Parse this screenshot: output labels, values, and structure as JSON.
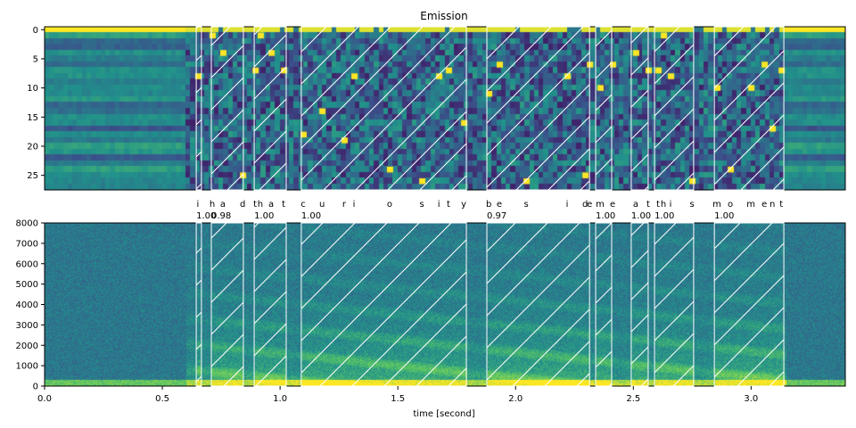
{
  "chart_data": [
    {
      "type": "heatmap",
      "title": "Emission",
      "ylim": [
        27.5,
        -0.5
      ],
      "yticks": [
        0,
        5,
        10,
        15,
        20,
        25
      ],
      "n_labels": 28,
      "colormap": "viridis"
    },
    {
      "type": "heatmap",
      "title": "",
      "xlabel": "time [second]",
      "ylabel": "",
      "xlim": [
        0,
        3.4
      ],
      "ylim": [
        0,
        8000
      ],
      "xticks": [
        "0.0",
        "0.5",
        "1.0",
        "1.5",
        "2.0",
        "2.5",
        "3.0"
      ],
      "yticks": [
        "0",
        "1000",
        "2000",
        "3000",
        "4000",
        "5000",
        "6000",
        "7000",
        "8000"
      ],
      "colormap": "viridis",
      "words": [
        {
          "start": 0.644,
          "end": 0.666,
          "score": "1.00"
        },
        {
          "start": 0.708,
          "end": 0.844,
          "score": "0.98"
        },
        {
          "start": 0.89,
          "end": 1.026,
          "score": "1.00"
        },
        {
          "start": 1.09,
          "end": 1.791,
          "score": "1.00"
        },
        {
          "start": 1.878,
          "end": 2.314,
          "score": "0.97"
        },
        {
          "start": 2.34,
          "end": 2.408,
          "score": "1.00"
        },
        {
          "start": 2.491,
          "end": 2.563,
          "score": "1.00"
        },
        {
          "start": 2.59,
          "end": 2.756,
          "score": "1.00"
        },
        {
          "start": 2.844,
          "end": 3.139,
          "score": "1.00"
        }
      ],
      "chars": [
        {
          "c": "i",
          "t": 0.651
        },
        {
          "c": "h",
          "t": 0.712
        },
        {
          "c": "a",
          "t": 0.757
        },
        {
          "c": "d",
          "t": 0.841
        },
        {
          "c": "t",
          "t": 0.894
        },
        {
          "c": "h",
          "t": 0.916
        },
        {
          "c": "a",
          "t": 0.962
        },
        {
          "c": "t",
          "t": 1.015
        },
        {
          "c": "c",
          "t": 1.098
        },
        {
          "c": "u",
          "t": 1.178
        },
        {
          "c": "r",
          "t": 1.272
        },
        {
          "c": "i",
          "t": 1.314
        },
        {
          "c": "o",
          "t": 1.465
        },
        {
          "c": "s",
          "t": 1.602
        },
        {
          "c": "i",
          "t": 1.674
        },
        {
          "c": "t",
          "t": 1.715
        },
        {
          "c": "y",
          "t": 1.78
        },
        {
          "c": "b",
          "t": 1.886
        },
        {
          "c": "e",
          "t": 1.931
        },
        {
          "c": "s",
          "t": 2.045
        },
        {
          "c": "i",
          "t": 2.219
        },
        {
          "c": "d",
          "t": 2.295
        },
        {
          "c": "e",
          "t": 2.314
        },
        {
          "c": "m",
          "t": 2.359
        },
        {
          "c": "e",
          "t": 2.412
        },
        {
          "c": "a",
          "t": 2.51
        },
        {
          "c": "t",
          "t": 2.563
        },
        {
          "c": "t",
          "t": 2.605
        },
        {
          "c": "h",
          "t": 2.628
        },
        {
          "c": "i",
          "t": 2.658
        },
        {
          "c": "s",
          "t": 2.749
        },
        {
          "c": "m",
          "t": 2.855
        },
        {
          "c": "o",
          "t": 2.912
        },
        {
          "c": "m",
          "t": 2.999
        },
        {
          "c": "e",
          "t": 3.056
        },
        {
          "c": "n",
          "t": 3.09
        },
        {
          "c": "t",
          "t": 3.128
        }
      ]
    }
  ]
}
